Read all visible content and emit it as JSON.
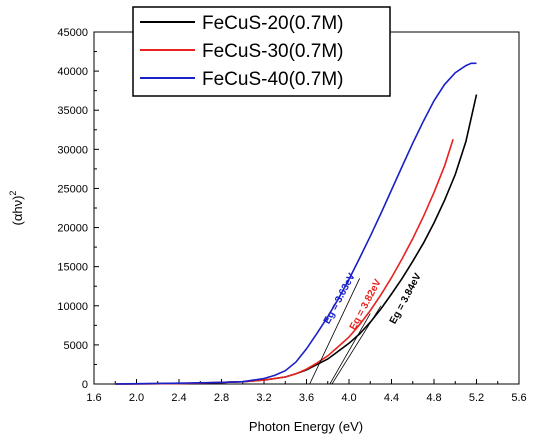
{
  "chart_data": {
    "type": "line",
    "title": "",
    "xlabel": "Photon Energy (eV)",
    "ylabel_base": "(αhν)",
    "ylabel_sup": "2",
    "xlim": [
      1.6,
      5.6
    ],
    "ylim": [
      0,
      45000
    ],
    "x_ticks": [
      "1.6",
      "2.0",
      "2.4",
      "2.8",
      "3.2",
      "3.6",
      "4.0",
      "4.4",
      "4.8",
      "5.2",
      "5.6"
    ],
    "y_ticks": [
      "0",
      "5000",
      "10000",
      "15000",
      "20000",
      "25000",
      "30000",
      "35000",
      "40000",
      "45000"
    ],
    "grid": false,
    "legend_position": "top-center",
    "series": [
      {
        "name": "FeCuS-20(0.7M)",
        "color": "#000000",
        "x": [
          1.8,
          2.4,
          2.8,
          3.0,
          3.2,
          3.4,
          3.5,
          3.6,
          3.7,
          3.8,
          3.9,
          4.0,
          4.1,
          4.2,
          4.3,
          4.4,
          4.5,
          4.6,
          4.7,
          4.8,
          4.9,
          5.0,
          5.1,
          5.2
        ],
        "y": [
          0,
          50,
          200,
          300,
          500,
          900,
          1300,
          1800,
          2500,
          3200,
          4200,
          5200,
          6400,
          7900,
          9600,
          11500,
          13500,
          15700,
          18000,
          20600,
          23500,
          26800,
          31000,
          37000
        ]
      },
      {
        "name": "FeCuS-30(0.7M)",
        "color": "#e8221f",
        "x": [
          1.8,
          2.4,
          2.8,
          3.0,
          3.2,
          3.4,
          3.5,
          3.6,
          3.7,
          3.8,
          3.9,
          4.0,
          4.1,
          4.2,
          4.3,
          4.4,
          4.5,
          4.6,
          4.7,
          4.8,
          4.9,
          4.98
        ],
        "y": [
          0,
          50,
          200,
          300,
          500,
          900,
          1300,
          1900,
          2700,
          3600,
          4800,
          6000,
          7600,
          9400,
          11400,
          13600,
          16000,
          18600,
          21400,
          24500,
          27900,
          31300
        ]
      },
      {
        "name": "FeCuS-40(0.7M)",
        "color": "#1a20c8",
        "x": [
          1.8,
          2.4,
          2.8,
          3.0,
          3.2,
          3.3,
          3.4,
          3.5,
          3.6,
          3.7,
          3.8,
          3.9,
          4.0,
          4.1,
          4.2,
          4.3,
          4.4,
          4.5,
          4.6,
          4.7,
          4.8,
          4.9,
          5.0,
          5.1,
          5.15,
          5.2
        ],
        "y": [
          0,
          100,
          200,
          300,
          700,
          1100,
          1700,
          2800,
          4500,
          6500,
          8600,
          10900,
          13400,
          16100,
          18900,
          21800,
          24800,
          27800,
          30800,
          33600,
          36200,
          38300,
          39800,
          40700,
          41000,
          41000
        ]
      }
    ],
    "annotations": [
      {
        "text": "Eg = 3.63eV",
        "color": "#1a20c8",
        "x": 3.63,
        "line_to": [
          4.1,
          13500
        ]
      },
      {
        "text": "Eg = 3.82eV",
        "color": "#e8221f",
        "x": 3.82,
        "line_to": [
          4.2,
          9000
        ]
      },
      {
        "text": "Eg = 3.84eV",
        "color": "#000000",
        "x": 3.84,
        "line_to": [
          4.3,
          10000
        ]
      }
    ]
  }
}
